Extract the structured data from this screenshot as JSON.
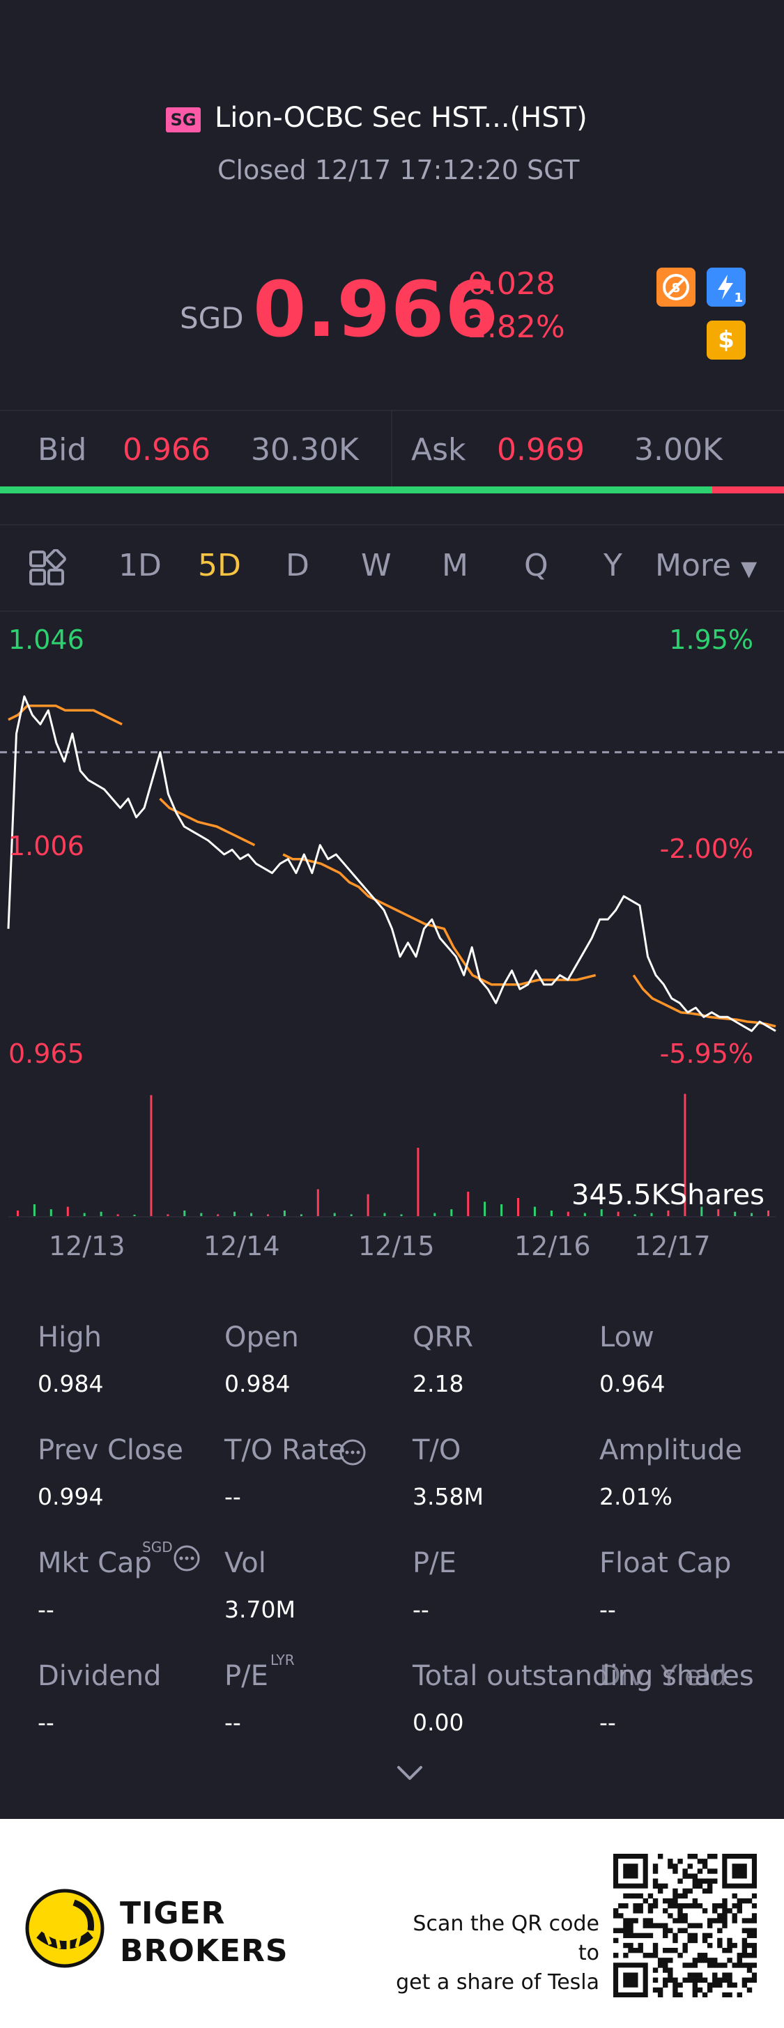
{
  "header": {
    "market_flag": "SG",
    "title": "Lion-OCBC Sec HST...(HST)",
    "status": "Closed 12/17 17:12:20 SGT",
    "currency": "SGD",
    "price": "0.966",
    "change": "-0.028",
    "change_pct": "-2.82%",
    "badges": [
      {
        "icon": "no-shorting-icon",
        "color": "#ff8a2a"
      },
      {
        "icon": "lightning-icon",
        "color": "#3a8dff",
        "sub": "1"
      },
      {
        "icon": "dollar-icon",
        "color": "#f6a900",
        "glyph": "$"
      }
    ]
  },
  "bidask": {
    "bid_label": "Bid",
    "bid_price": "0.966",
    "bid_size": "30.30K",
    "ask_label": "Ask",
    "ask_price": "0.969",
    "ask_size": "3.00K",
    "bid_ratio": 0.908
  },
  "tabs": {
    "items": [
      "1D",
      "5D",
      "D",
      "W",
      "M",
      "Q",
      "Y"
    ],
    "active": "5D",
    "more_label": "More"
  },
  "chart_data": {
    "type": "line",
    "y_left_top": "1.046",
    "y_left_mid": "1.006",
    "y_left_bottom": "0.965",
    "y_right_top": "1.95%",
    "y_right_mid": "-2.00%",
    "y_right_bottom": "-5.95%",
    "ylim": [
      0.965,
      1.046
    ],
    "prev_close": 1.026,
    "x_ticks": [
      "12/13",
      "12/14",
      "12/15",
      "12/16",
      "12/17"
    ],
    "volume_label": "345.5KShares",
    "series": [
      {
        "color": "#ffffff",
        "values": [
          0.988,
          1.03,
          1.038,
          1.034,
          1.032,
          1.035,
          1.028,
          1.024,
          1.03,
          1.022,
          1.02,
          1.019,
          1.018,
          1.016,
          1.014,
          1.016,
          1.012,
          1.014,
          1.02,
          1.026,
          1.017,
          1.013,
          1.01,
          1.009,
          1.008,
          1.007,
          1.0055,
          1.004,
          1.005,
          1.003,
          1.004,
          1.002,
          1.001,
          1.0,
          1.002,
          1.003,
          1.0,
          1.004,
          1.0,
          1.006,
          1.003,
          1.004,
          1.002,
          1.0,
          0.998,
          0.996,
          0.994,
          0.992,
          0.988,
          0.982,
          0.985,
          0.982,
          0.988,
          0.99,
          0.986,
          0.984,
          0.982,
          0.978,
          0.984,
          0.977,
          0.975,
          0.972,
          0.976,
          0.979,
          0.975,
          0.976,
          0.979,
          0.976,
          0.976,
          0.978,
          0.977,
          0.98,
          0.983,
          0.986,
          0.99,
          0.99,
          0.992,
          0.995,
          0.994,
          0.993,
          0.982,
          0.978,
          0.976,
          0.973,
          0.972,
          0.97,
          0.971,
          0.969,
          0.97,
          0.969,
          0.969,
          0.968,
          0.967,
          0.966,
          0.968,
          0.967,
          0.966
        ]
      },
      {
        "color": "#ff9428",
        "values": [
          1.033,
          1.034,
          1.036,
          1.036,
          1.036,
          1.036,
          1.035,
          1.035,
          1.035,
          1.035,
          1.034,
          1.033,
          1.032,
          null,
          null,
          null,
          1.016,
          1.014,
          1.013,
          1.012,
          1.011,
          1.0105,
          1.01,
          1.009,
          1.008,
          1.007,
          1.006,
          null,
          null,
          1.004,
          1.003,
          1.003,
          1.0025,
          1.002,
          1.001,
          1.0,
          0.998,
          0.997,
          0.995,
          0.994,
          0.993,
          0.992,
          0.991,
          0.99,
          0.989,
          0.9885,
          0.988,
          0.984,
          0.981,
          0.978,
          0.977,
          0.976,
          0.976,
          0.976,
          0.976,
          0.9765,
          0.977,
          0.977,
          0.977,
          0.977,
          0.977,
          0.9775,
          0.978,
          null,
          null,
          null,
          0.978,
          0.975,
          0.973,
          0.972,
          0.971,
          0.97,
          0.9698,
          0.9695,
          0.969,
          0.9688,
          0.9686,
          0.9684,
          0.968,
          0.9678,
          0.9675,
          0.967
        ]
      }
    ],
    "volumes": [
      0.05,
      0.1,
      0.06,
      0.08,
      0.03,
      0.04,
      0.02,
      0.01,
      0.97,
      0.02,
      0.05,
      0.03,
      0.02,
      0.04,
      0.03,
      0.02,
      0.05,
      0.02,
      0.22,
      0.03,
      0.02,
      0.18,
      0.03,
      0.02,
      0.55,
      0.03,
      0.06,
      0.2,
      0.12,
      0.1,
      0.15,
      0.08,
      0.05,
      0.04,
      0.03,
      0.06,
      0.04,
      0.02,
      0.03,
      0.05,
      0.98,
      0.08,
      0.06,
      0.04,
      0.03,
      0.05
    ]
  },
  "stats": [
    {
      "label": "High",
      "value": "0.984"
    },
    {
      "label": "Open",
      "value": "0.984"
    },
    {
      "label": "QRR",
      "value": "2.18"
    },
    {
      "label": "Low",
      "value": "0.964"
    },
    {
      "label": "Prev Close",
      "value": "0.994"
    },
    {
      "label": "T/O Rate",
      "value": "--",
      "info": true
    },
    {
      "label": "T/O",
      "value": "3.58M"
    },
    {
      "label": "Amplitude",
      "value": "2.01%"
    },
    {
      "label": "Mkt Cap",
      "value": "--",
      "sup": "SGD",
      "info": true
    },
    {
      "label": "Vol",
      "value": "3.70M"
    },
    {
      "label": "P/E",
      "value": "--"
    },
    {
      "label": "Float Cap",
      "value": "--"
    },
    {
      "label": "Dividend",
      "value": "--"
    },
    {
      "label": "P/E",
      "value": "--",
      "sup": "LYR"
    },
    {
      "label": "Total outstanding shares",
      "value": "0.00"
    },
    {
      "label": "Div. Yield",
      "value": "--"
    }
  ],
  "banner": {
    "brand_line1": "TIGER",
    "brand_line2": "BROKERS",
    "scan_line1": "Scan the QR code to",
    "scan_line2": "get a share of Tesla"
  }
}
